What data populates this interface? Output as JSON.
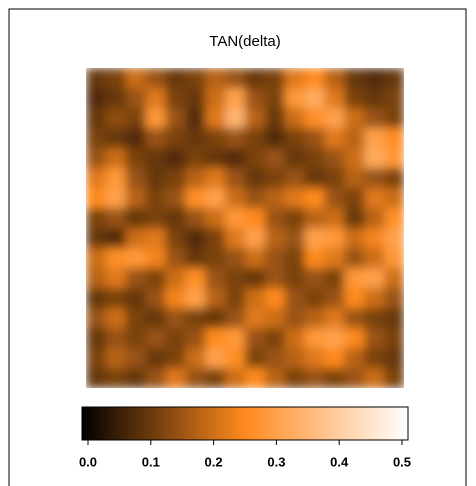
{
  "chart_data": {
    "type": "heatmap",
    "title": "TAN(delta)",
    "colormap": [
      "#000000",
      "#ff8a1e",
      "#ffffff"
    ],
    "zlim": [
      0,
      0.5
    ],
    "zticks": [
      {
        "value": 0,
        "label": "0.0"
      },
      0.1,
      0.2,
      0.3,
      0.4,
      0.5
    ],
    "z": [
      [
        0.1,
        0.12,
        0.2,
        0.15,
        0.1,
        0.12,
        0.18,
        0.15,
        0.1,
        0.12,
        0.22,
        0.25,
        0.18,
        0.1,
        0.08,
        0.1
      ],
      [
        0.08,
        0.1,
        0.15,
        0.22,
        0.12,
        0.1,
        0.2,
        0.3,
        0.15,
        0.12,
        0.28,
        0.32,
        0.22,
        0.12,
        0.1,
        0.12
      ],
      [
        0.1,
        0.14,
        0.12,
        0.28,
        0.15,
        0.08,
        0.22,
        0.34,
        0.18,
        0.1,
        0.2,
        0.26,
        0.3,
        0.2,
        0.15,
        0.12
      ],
      [
        0.12,
        0.1,
        0.08,
        0.15,
        0.12,
        0.1,
        0.12,
        0.15,
        0.12,
        0.08,
        0.12,
        0.15,
        0.22,
        0.18,
        0.3,
        0.26
      ],
      [
        0.15,
        0.2,
        0.12,
        0.1,
        0.08,
        0.12,
        0.1,
        0.08,
        0.12,
        0.15,
        0.1,
        0.12,
        0.15,
        0.2,
        0.32,
        0.28
      ],
      [
        0.22,
        0.28,
        0.15,
        0.1,
        0.12,
        0.18,
        0.22,
        0.15,
        0.1,
        0.12,
        0.15,
        0.1,
        0.12,
        0.18,
        0.15,
        0.12
      ],
      [
        0.25,
        0.3,
        0.18,
        0.12,
        0.15,
        0.26,
        0.3,
        0.2,
        0.15,
        0.18,
        0.22,
        0.25,
        0.15,
        0.12,
        0.22,
        0.2
      ],
      [
        0.12,
        0.15,
        0.1,
        0.12,
        0.1,
        0.15,
        0.2,
        0.28,
        0.25,
        0.15,
        0.12,
        0.18,
        0.2,
        0.1,
        0.18,
        0.26
      ],
      [
        0.1,
        0.08,
        0.2,
        0.22,
        0.12,
        0.08,
        0.12,
        0.22,
        0.3,
        0.18,
        0.15,
        0.3,
        0.28,
        0.2,
        0.24,
        0.3
      ],
      [
        0.2,
        0.26,
        0.28,
        0.24,
        0.15,
        0.1,
        0.12,
        0.15,
        0.2,
        0.15,
        0.12,
        0.25,
        0.22,
        0.15,
        0.2,
        0.28
      ],
      [
        0.18,
        0.22,
        0.15,
        0.12,
        0.2,
        0.26,
        0.15,
        0.12,
        0.1,
        0.15,
        0.12,
        0.15,
        0.12,
        0.28,
        0.3,
        0.2
      ],
      [
        0.1,
        0.12,
        0.1,
        0.15,
        0.24,
        0.3,
        0.18,
        0.12,
        0.2,
        0.25,
        0.15,
        0.12,
        0.15,
        0.25,
        0.2,
        0.15
      ],
      [
        0.15,
        0.2,
        0.12,
        0.1,
        0.15,
        0.12,
        0.1,
        0.15,
        0.22,
        0.2,
        0.15,
        0.18,
        0.22,
        0.15,
        0.12,
        0.1
      ],
      [
        0.1,
        0.15,
        0.12,
        0.15,
        0.12,
        0.15,
        0.25,
        0.28,
        0.15,
        0.12,
        0.2,
        0.28,
        0.3,
        0.25,
        0.15,
        0.12
      ],
      [
        0.12,
        0.18,
        0.15,
        0.1,
        0.12,
        0.2,
        0.3,
        0.26,
        0.12,
        0.15,
        0.18,
        0.22,
        0.25,
        0.18,
        0.12,
        0.1
      ],
      [
        0.1,
        0.12,
        0.1,
        0.15,
        0.22,
        0.15,
        0.12,
        0.2,
        0.25,
        0.18,
        0.12,
        0.15,
        0.12,
        0.15,
        0.2,
        0.12
      ]
    ]
  }
}
